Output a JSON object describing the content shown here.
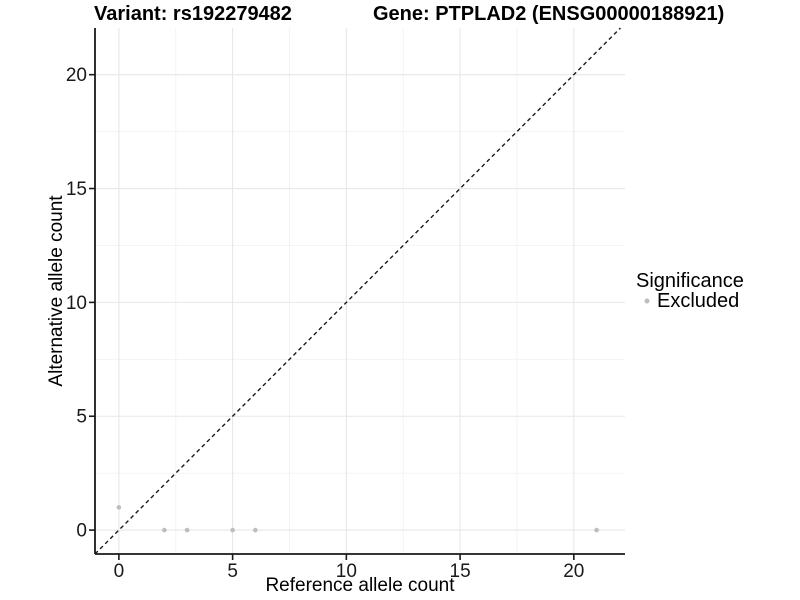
{
  "chart_data": {
    "type": "scatter",
    "title_left": "Variant: rs192279482",
    "title_right": "Gene: PTPLAD2 (ENSG00000188921)",
    "xlabel": "Reference allele count",
    "ylabel": "Alternative allele count",
    "xlim": [
      -1.05,
      22.25
    ],
    "ylim": [
      -1.05,
      22.05
    ],
    "x_ticks": [
      0,
      5,
      10,
      15,
      20
    ],
    "y_ticks": [
      0,
      5,
      10,
      15,
      20
    ],
    "x_minor_gridlines": [
      2.5,
      7.5,
      12.5,
      17.5
    ],
    "y_minor_gridlines": [
      2.5,
      7.5,
      12.5,
      17.5
    ],
    "grid": "major+minor",
    "series": [
      {
        "name": "Excluded",
        "color": "#bebebe",
        "points": [
          [
            0,
            1
          ],
          [
            2,
            0
          ],
          [
            3,
            0
          ],
          [
            5,
            0
          ],
          [
            6,
            0
          ],
          [
            21,
            0
          ]
        ]
      }
    ],
    "reference_line": {
      "kind": "identity",
      "from": [
        -1.05,
        -1.05
      ],
      "to": [
        22.05,
        22.05
      ],
      "style": "dashed",
      "color": "#1a1a1a"
    },
    "legend": {
      "title": "Significance",
      "position": "right",
      "items": [
        {
          "label": "Excluded",
          "color": "#bebebe"
        }
      ]
    }
  },
  "style": {
    "background": "#ffffff",
    "grid_major_color": "#e7e7e7",
    "grid_minor_color": "#f2f2f2",
    "axis_color": "#1a1a1a",
    "point_color": "#bebebe",
    "text_color": "#000000"
  }
}
